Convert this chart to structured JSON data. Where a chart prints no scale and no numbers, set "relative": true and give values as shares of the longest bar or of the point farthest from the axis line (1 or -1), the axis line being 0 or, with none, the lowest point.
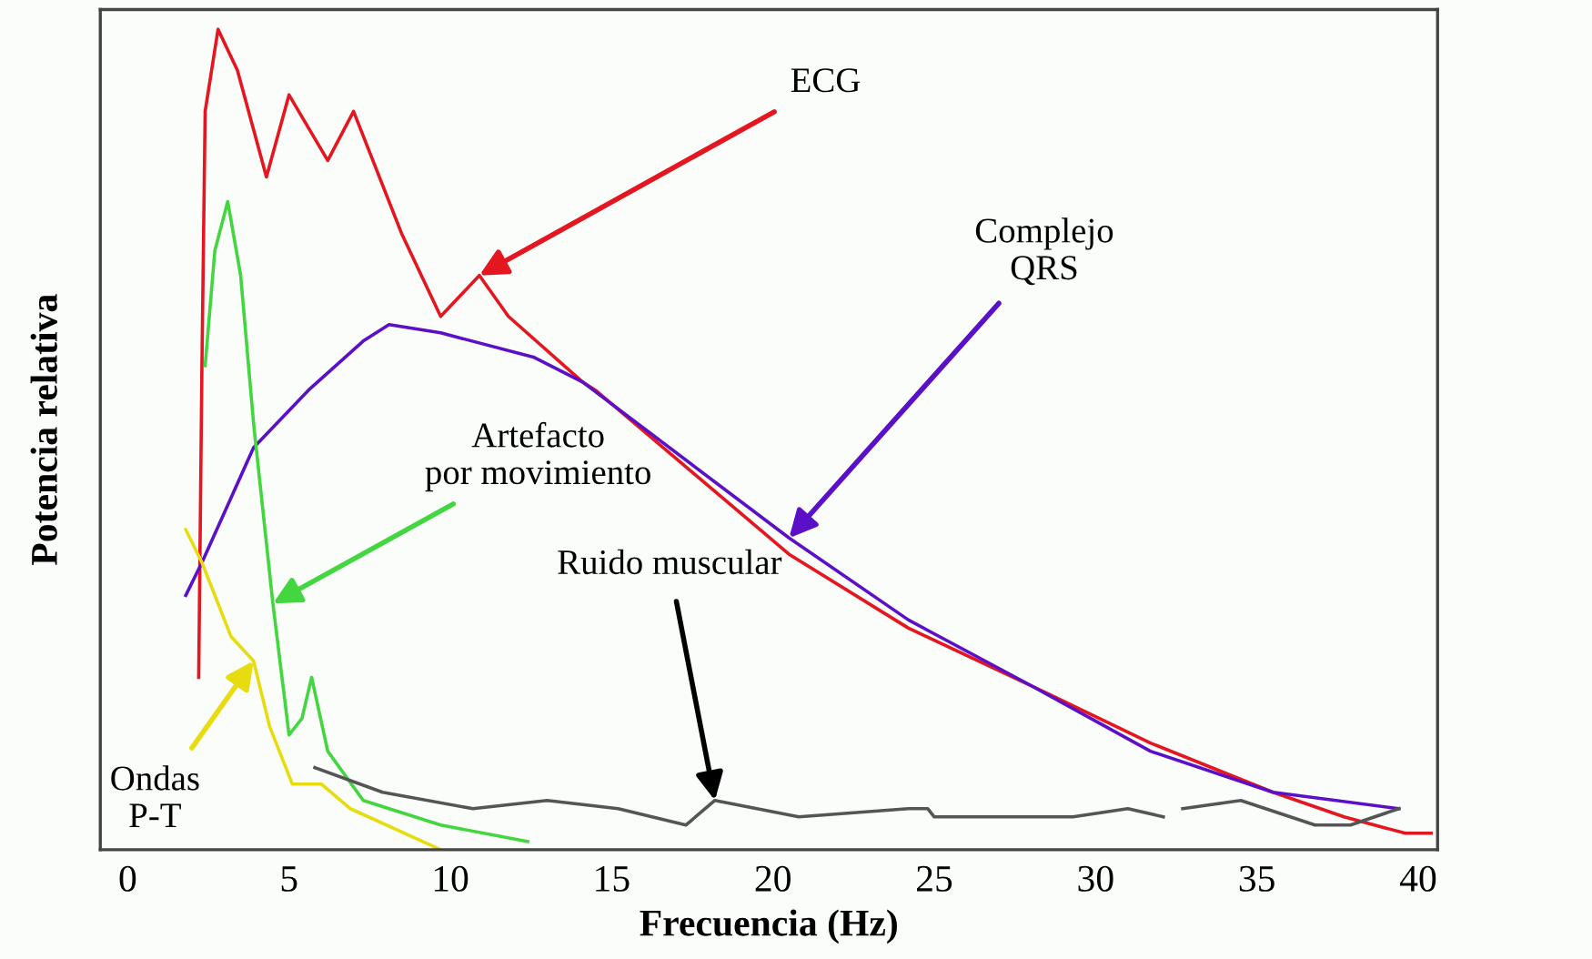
{
  "chart_data": {
    "type": "line",
    "relative": true,
    "xlabel": "Frecuencia (Hz)",
    "ylabel": "Potencia relativa",
    "xlim": [
      -0.85,
      40.6
    ],
    "xticks": [
      0,
      5,
      10,
      15,
      20,
      25,
      30,
      35,
      40
    ],
    "grid": false,
    "marker": "none",
    "line_style": "solid",
    "series": [
      {
        "color": "#e4161f",
        "x": [
          2.2,
          2.3,
          2.4,
          2.8,
          3.4,
          4.3,
          5.0,
          6.2,
          7.0,
          8.5,
          9.7,
          10.9,
          11.8,
          14.1,
          14.5,
          20.5,
          24.2,
          28.0,
          31.7,
          35.5,
          37.7,
          39.6,
          40.4
        ],
        "values": [
          0.21,
          0.59,
          0.9,
          1.0,
          0.95,
          0.82,
          0.92,
          0.84,
          0.9,
          0.75,
          0.65,
          0.7,
          0.65,
          0.57,
          0.56,
          0.36,
          0.27,
          0.2,
          0.13,
          0.07,
          0.04,
          0.02,
          0.02
        ]
      },
      {
        "color": "#5b10c8",
        "x": [
          1.8,
          2.3,
          3.9,
          5.6,
          7.3,
          8.1,
          9.7,
          12.6,
          14.1,
          20.5,
          24.2,
          28.0,
          31.7,
          35.5,
          39.4
        ],
        "values": [
          0.31,
          0.35,
          0.49,
          0.56,
          0.62,
          0.64,
          0.63,
          0.6,
          0.57,
          0.38,
          0.28,
          0.2,
          0.12,
          0.07,
          0.05
        ]
      },
      {
        "color": "#44d640",
        "x": [
          2.4,
          2.7,
          3.1,
          3.5,
          3.9,
          4.5,
          5.0,
          5.4,
          5.7,
          6.2,
          7.3,
          9.7,
          12.4
        ],
        "values": [
          0.59,
          0.73,
          0.79,
          0.7,
          0.52,
          0.3,
          0.14,
          0.16,
          0.21,
          0.12,
          0.06,
          0.03,
          0.01
        ]
      },
      {
        "color": "#555555",
        "x": [
          5.8,
          7.9,
          10.7,
          13.0,
          15.2,
          17.3,
          18.2,
          20.8,
          24.2,
          24.8,
          25.0,
          28.0,
          29.3,
          31.0,
          32.1,
          32.4,
          32.7,
          34.5,
          36.8,
          37.9,
          39.4
        ],
        "values": [
          0.1,
          0.07,
          0.05,
          0.06,
          0.05,
          0.03,
          0.06,
          0.04,
          0.05,
          0.05,
          0.04,
          0.04,
          0.04,
          0.05,
          0.04,
          null,
          0.05,
          0.06,
          0.03,
          0.03,
          0.05
        ]
      },
      {
        "color": "#e6dc10",
        "x": [
          1.8,
          2.3,
          2.8,
          3.2,
          3.9,
          4.4,
          5.1,
          6.0,
          6.9,
          9.7
        ],
        "values": [
          0.39,
          0.35,
          0.3,
          0.26,
          0.23,
          0.15,
          0.08,
          0.08,
          0.05,
          0.0
        ]
      }
    ],
    "annotations": [
      {
        "text": "ECG",
        "x": 10.9,
        "y": 0.7
      },
      {
        "text": "Complejo\nQRS",
        "x": 20.5,
        "y": 0.38
      },
      {
        "text": "Artefacto\npor movimiento",
        "x": 4.5,
        "y": 0.3
      },
      {
        "text": "Ruido muscular",
        "x": 18.2,
        "y": 0.06
      },
      {
        "text": "Ondas\nP-T",
        "x": 3.9,
        "y": 0.23
      }
    ]
  }
}
